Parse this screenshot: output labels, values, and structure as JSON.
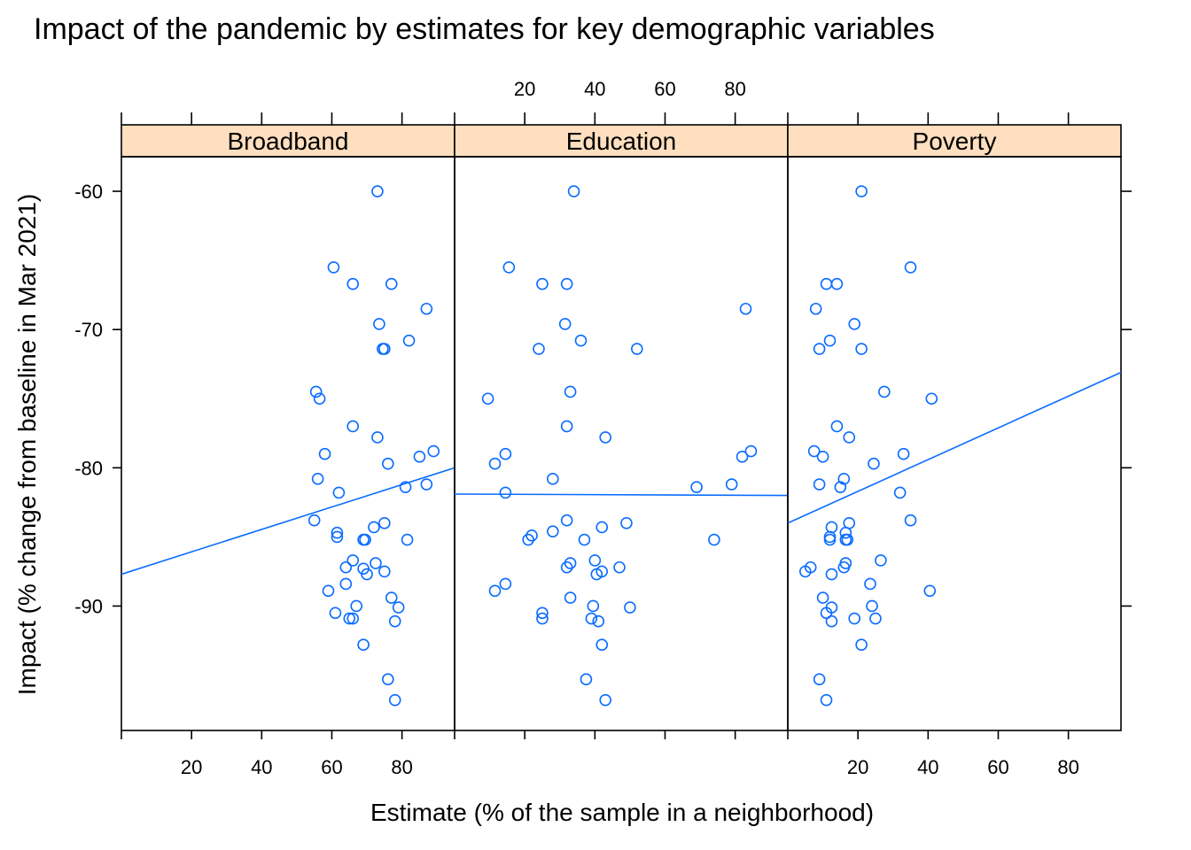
{
  "chart_data": {
    "type": "scatter",
    "title": "Impact of the pandemic by estimates for key demographic variables",
    "xlabel": "Estimate (% of the sample in a neighborhood)",
    "ylabel": "Impact (% change from baseline in Mar 2021)",
    "xlim": [
      0,
      95
    ],
    "ylim": [
      -99,
      -57.5
    ],
    "x_ticks": [
      20,
      40,
      60,
      80
    ],
    "y_ticks": [
      -60,
      -70,
      -80,
      -90
    ],
    "point_color": "#0a6cff",
    "line_color": "#0a6cff",
    "strip_color": "#ffdfbf",
    "panels": [
      {
        "name": "Broadband",
        "points": [
          [
            73,
            -60
          ],
          [
            60.5,
            -65.5
          ],
          [
            66,
            -66.7
          ],
          [
            77,
            -66.7
          ],
          [
            87,
            -68.5
          ],
          [
            73.5,
            -69.6
          ],
          [
            82,
            -70.8
          ],
          [
            74.5,
            -71.4
          ],
          [
            75,
            -71.4
          ],
          [
            55.5,
            -74.5
          ],
          [
            56.5,
            -75
          ],
          [
            66,
            -77
          ],
          [
            73,
            -77.8
          ],
          [
            58,
            -79
          ],
          [
            89,
            -78.8
          ],
          [
            85,
            -79.2
          ],
          [
            76,
            -79.7
          ],
          [
            56,
            -80.8
          ],
          [
            62,
            -81.8
          ],
          [
            87,
            -81.2
          ],
          [
            81,
            -81.4
          ],
          [
            55,
            -83.8
          ],
          [
            75,
            -84
          ],
          [
            72,
            -84.3
          ],
          [
            61.5,
            -84.7
          ],
          [
            61.5,
            -85
          ],
          [
            69,
            -85.2
          ],
          [
            69.5,
            -85.2
          ],
          [
            81.5,
            -85.2
          ],
          [
            66,
            -86.7
          ],
          [
            72.5,
            -86.9
          ],
          [
            64,
            -87.2
          ],
          [
            69,
            -87.3
          ],
          [
            75,
            -87.5
          ],
          [
            70,
            -87.7
          ],
          [
            64,
            -88.4
          ],
          [
            59,
            -88.9
          ],
          [
            77,
            -89.4
          ],
          [
            79,
            -90.1
          ],
          [
            67,
            -90
          ],
          [
            61,
            -90.5
          ],
          [
            65,
            -90.9
          ],
          [
            66,
            -90.9
          ],
          [
            78,
            -91.1
          ],
          [
            69,
            -92.8
          ],
          [
            76,
            -95.3
          ],
          [
            78,
            -96.8
          ]
        ]
      },
      {
        "name": "Education",
        "points": [
          [
            34,
            -60
          ],
          [
            15.5,
            -65.5
          ],
          [
            25,
            -66.7
          ],
          [
            32,
            -66.7
          ],
          [
            83,
            -68.5
          ],
          [
            31.5,
            -69.6
          ],
          [
            36,
            -70.8
          ],
          [
            24,
            -71.4
          ],
          [
            52,
            -71.4
          ],
          [
            9.5,
            -75
          ],
          [
            33,
            -74.5
          ],
          [
            32,
            -77
          ],
          [
            43,
            -77.8
          ],
          [
            14.5,
            -79
          ],
          [
            84.5,
            -78.8
          ],
          [
            82,
            -79.2
          ],
          [
            11.5,
            -79.7
          ],
          [
            28,
            -80.8
          ],
          [
            14.5,
            -81.8
          ],
          [
            69,
            -81.4
          ],
          [
            79,
            -81.2
          ],
          [
            32,
            -83.8
          ],
          [
            49,
            -84
          ],
          [
            42,
            -84.3
          ],
          [
            28,
            -84.6
          ],
          [
            22,
            -84.9
          ],
          [
            21,
            -85.2
          ],
          [
            37,
            -85.2
          ],
          [
            74,
            -85.2
          ],
          [
            40,
            -86.7
          ],
          [
            33,
            -86.9
          ],
          [
            32,
            -87.2
          ],
          [
            47,
            -87.2
          ],
          [
            42,
            -87.5
          ],
          [
            40.5,
            -87.7
          ],
          [
            14.5,
            -88.4
          ],
          [
            11.5,
            -88.9
          ],
          [
            33,
            -89.4
          ],
          [
            50,
            -90.1
          ],
          [
            39.5,
            -90
          ],
          [
            25,
            -90.5
          ],
          [
            25,
            -90.9
          ],
          [
            39,
            -90.9
          ],
          [
            41,
            -91.1
          ],
          [
            42,
            -92.8
          ],
          [
            37.5,
            -95.3
          ],
          [
            43,
            -96.8
          ]
        ]
      },
      {
        "name": "Poverty",
        "points": [
          [
            21,
            -60
          ],
          [
            35,
            -65.5
          ],
          [
            11,
            -66.7
          ],
          [
            14,
            -66.7
          ],
          [
            8,
            -68.5
          ],
          [
            19,
            -69.6
          ],
          [
            12,
            -70.8
          ],
          [
            9,
            -71.4
          ],
          [
            21,
            -71.4
          ],
          [
            27.5,
            -74.5
          ],
          [
            41,
            -75
          ],
          [
            14,
            -77
          ],
          [
            17.5,
            -77.8
          ],
          [
            33,
            -79
          ],
          [
            7.5,
            -78.8
          ],
          [
            10,
            -79.2
          ],
          [
            24.5,
            -79.7
          ],
          [
            16,
            -80.8
          ],
          [
            9,
            -81.2
          ],
          [
            15,
            -81.4
          ],
          [
            32,
            -81.8
          ],
          [
            35,
            -83.8
          ],
          [
            17.5,
            -84
          ],
          [
            12.5,
            -84.3
          ],
          [
            16.5,
            -84.7
          ],
          [
            12,
            -85
          ],
          [
            16.5,
            -85.2
          ],
          [
            12,
            -85.2
          ],
          [
            17,
            -85.2
          ],
          [
            26.5,
            -86.7
          ],
          [
            16.5,
            -86.9
          ],
          [
            16,
            -87.2
          ],
          [
            6.5,
            -87.2
          ],
          [
            5,
            -87.5
          ],
          [
            12.5,
            -87.7
          ],
          [
            23.5,
            -88.4
          ],
          [
            40.5,
            -88.9
          ],
          [
            10,
            -89.4
          ],
          [
            24,
            -90
          ],
          [
            12.5,
            -90.1
          ],
          [
            11,
            -90.5
          ],
          [
            19,
            -90.9
          ],
          [
            25,
            -90.9
          ],
          [
            12.5,
            -91.1
          ],
          [
            21,
            -92.8
          ],
          [
            9,
            -95.3
          ],
          [
            11,
            -96.8
          ]
        ]
      }
    ],
    "fit_lines": [
      {
        "panel": "Broadband",
        "x": [
          0,
          95
        ],
        "y": [
          -87.7,
          -80
        ]
      },
      {
        "panel": "Education",
        "x": [
          0,
          95
        ],
        "y": [
          -81.9,
          -82
        ]
      },
      {
        "panel": "Poverty",
        "x": [
          0,
          95
        ],
        "y": [
          -84,
          -73.1
        ]
      }
    ],
    "top_axis_panel": "Education",
    "bottom_axis_panels": [
      "Broadband",
      "Poverty"
    ]
  }
}
